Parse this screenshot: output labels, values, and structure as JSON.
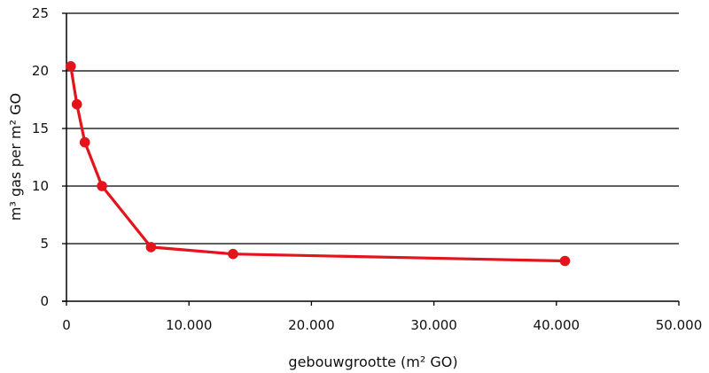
{
  "chart_data": {
    "type": "line",
    "xlabel": "gebouwgrootte (m² GO)",
    "ylabel": "m³ gas per m² GO",
    "xlim": [
      0,
      50000
    ],
    "ylim": [
      0,
      25
    ],
    "x_ticks": [
      0,
      10000,
      20000,
      30000,
      40000,
      50000
    ],
    "x_tick_labels": [
      "0",
      "10.000",
      "20.000",
      "30.000",
      "40.000",
      "50.000"
    ],
    "y_ticks": [
      0,
      5,
      10,
      15,
      20,
      25
    ],
    "y_tick_labels": [
      "0",
      "5",
      "10",
      "15",
      "20",
      "25"
    ],
    "grid": "horizontal",
    "legend": "none",
    "series": [
      {
        "color": "#e3141b",
        "points": [
          {
            "x": 350,
            "y": 20.4
          },
          {
            "x": 850,
            "y": 17.1
          },
          {
            "x": 1500,
            "y": 13.8
          },
          {
            "x": 2900,
            "y": 10.0
          },
          {
            "x": 6900,
            "y": 4.7
          },
          {
            "x": 13600,
            "y": 4.1
          },
          {
            "x": 40700,
            "y": 3.5
          }
        ]
      }
    ]
  }
}
